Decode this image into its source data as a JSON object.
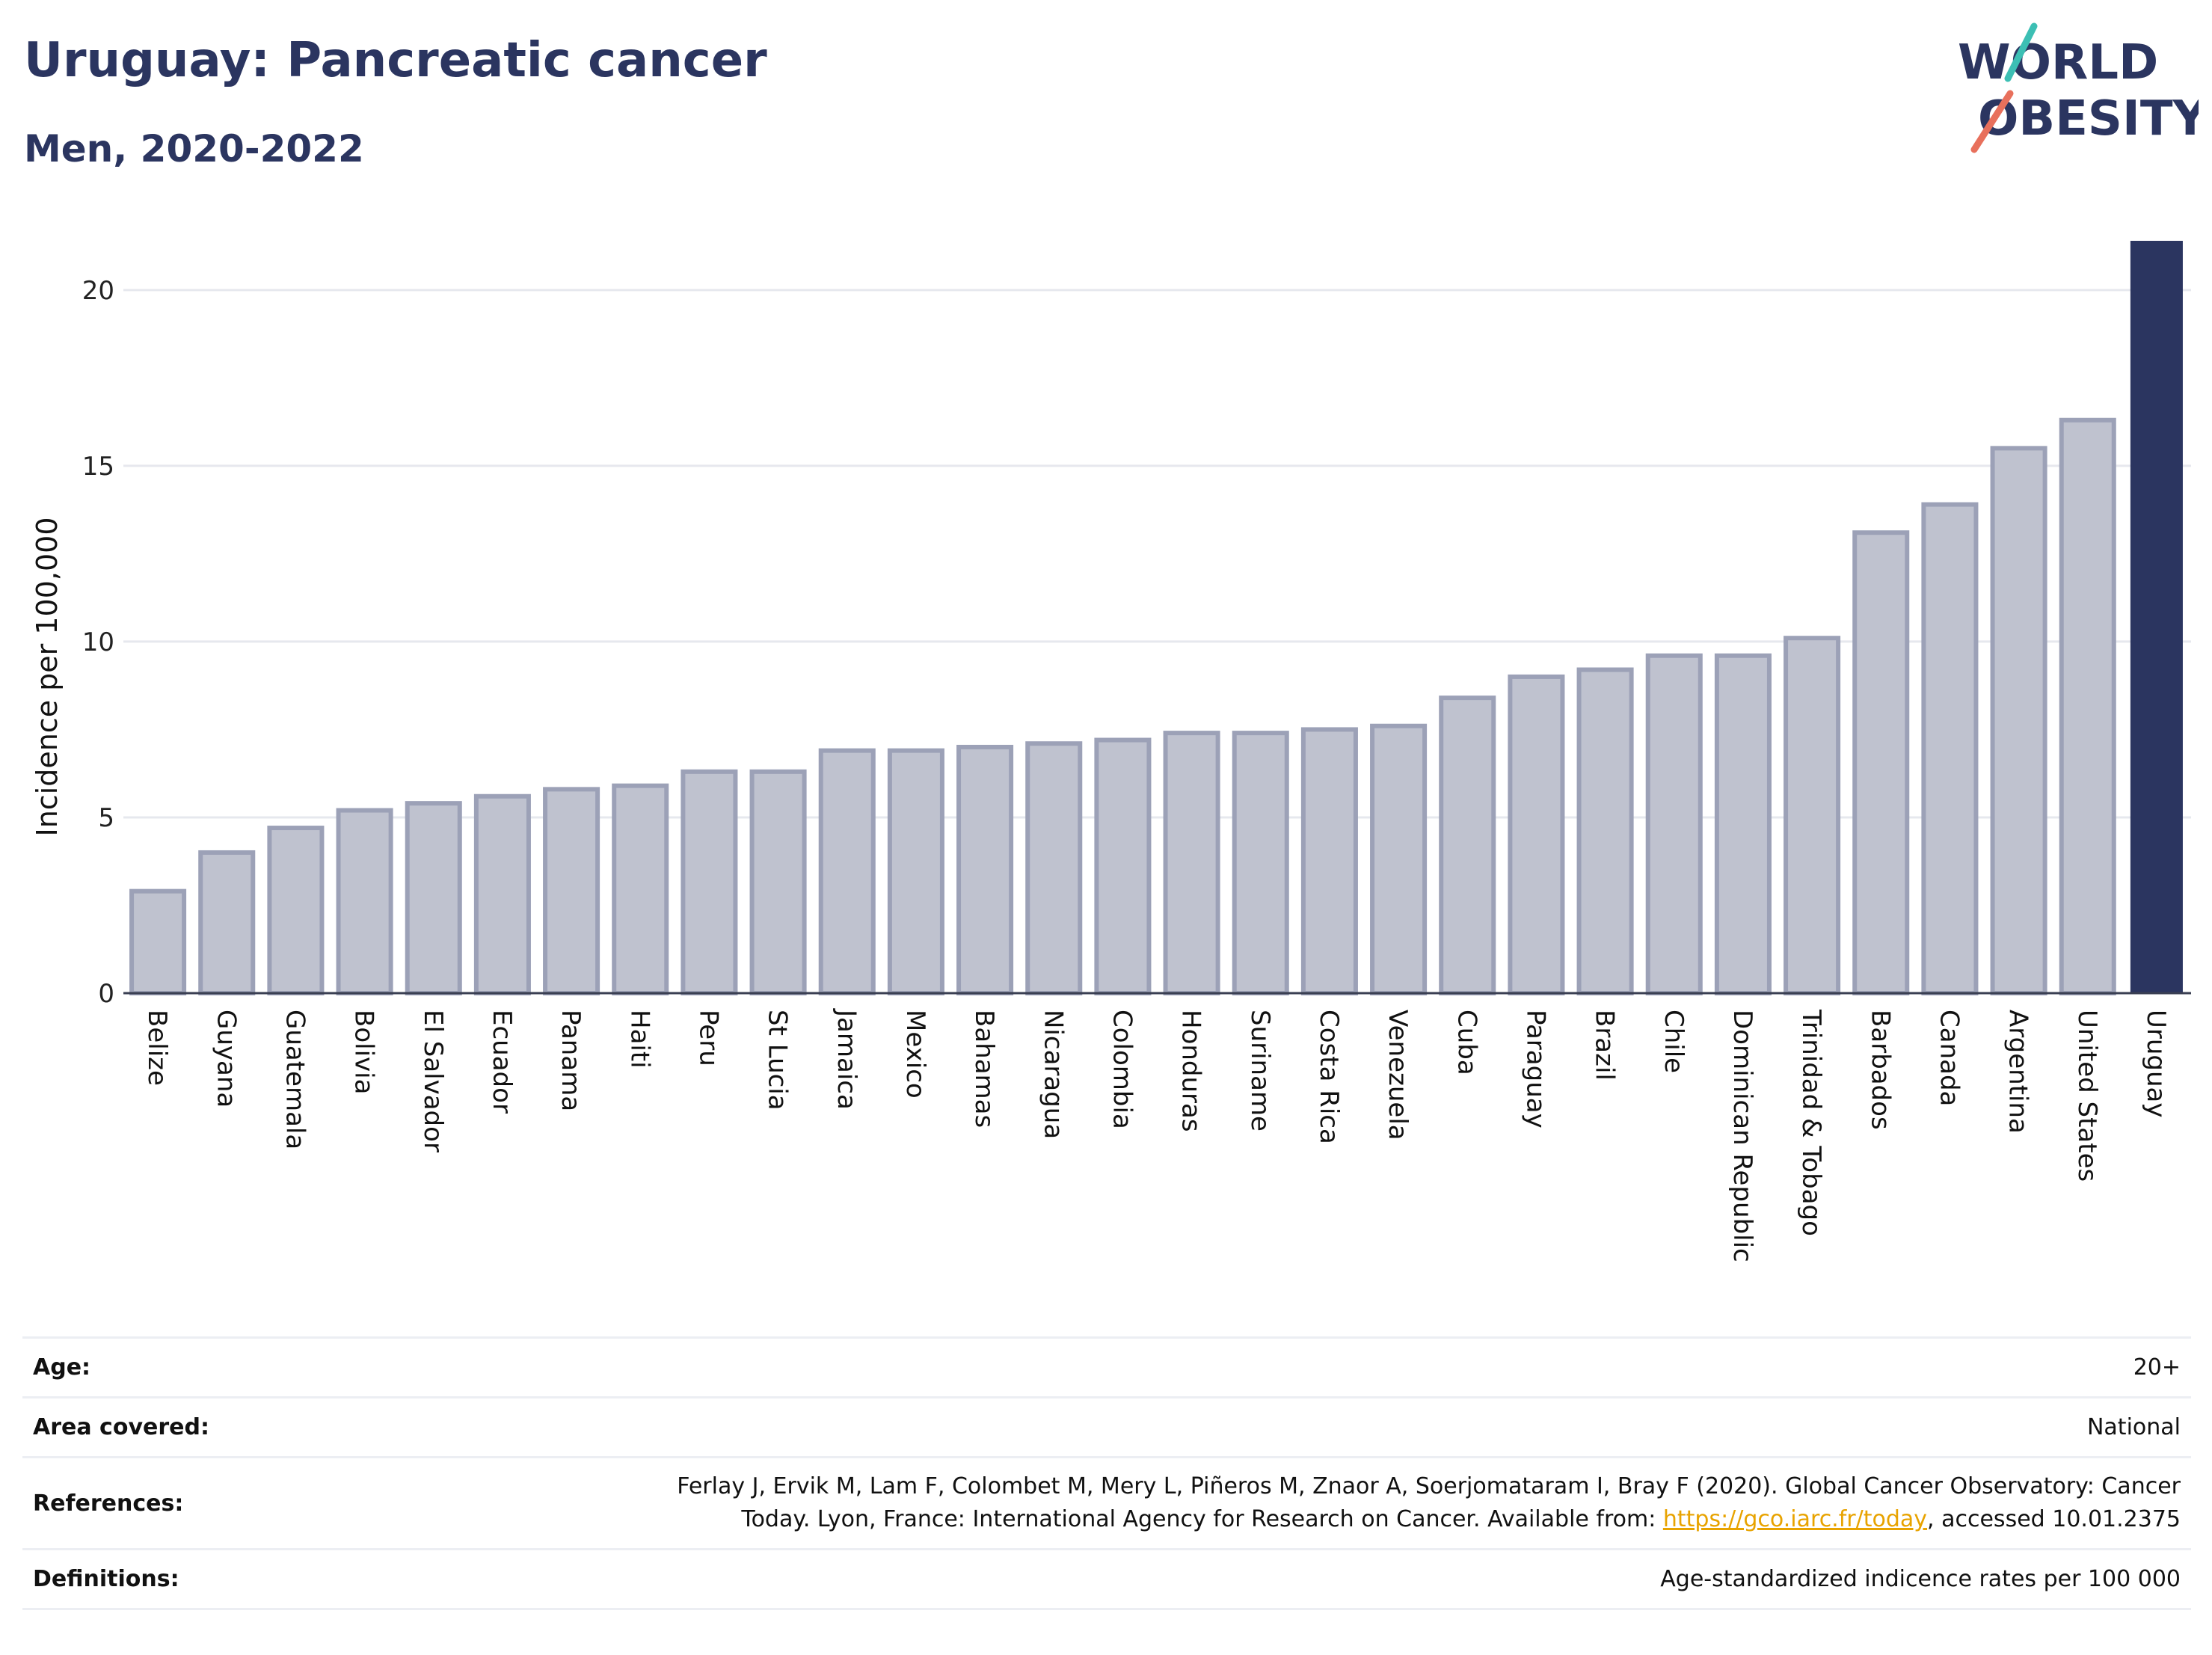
{
  "header": {
    "title": "Uruguay: Pancreatic cancer",
    "subtitle": "Men, 2020-2022"
  },
  "logo": {
    "line1": "WORLD",
    "line2": "OBESITY",
    "icon": "world-obesity-logo"
  },
  "colors": {
    "highlight_bar": "#2b3560",
    "other_bar_fill": "#bfc2cf",
    "other_bar_stroke": "#9ca1b7",
    "title": "#2b3560",
    "link": "#e8a300",
    "logo_teal": "#3cbfb4",
    "logo_coral": "#e8705c"
  },
  "chart_data": {
    "type": "bar",
    "ylabel": "Incidence per 100,000",
    "xlabel": "",
    "ylim": [
      0,
      21.4
    ],
    "yticks": [
      0,
      5,
      10,
      15,
      20
    ],
    "grid": true,
    "highlight": "Uruguay",
    "categories": [
      "Belize",
      "Guyana",
      "Guatemala",
      "Bolivia",
      "El Salvador",
      "Ecuador",
      "Panama",
      "Haiti",
      "Peru",
      "St Lucia",
      "Jamaica",
      "Mexico",
      "Bahamas",
      "Nicaragua",
      "Colombia",
      "Honduras",
      "Suriname",
      "Costa Rica",
      "Venezuela",
      "Cuba",
      "Paraguay",
      "Brazil",
      "Chile",
      "Dominican Republic",
      "Trinidad & Tobago",
      "Barbados",
      "Canada",
      "Argentina",
      "United States",
      "Uruguay"
    ],
    "values": [
      2.9,
      4.0,
      4.7,
      5.2,
      5.4,
      5.6,
      5.8,
      5.9,
      6.3,
      6.3,
      6.9,
      6.9,
      7.0,
      7.1,
      7.2,
      7.4,
      7.4,
      7.5,
      7.6,
      8.4,
      9.0,
      9.2,
      9.6,
      9.6,
      10.1,
      13.1,
      13.9,
      15.5,
      16.3,
      21.4
    ]
  },
  "meta": {
    "age_label": "Age:",
    "age_value": "20+",
    "area_label": "Area covered:",
    "area_value": "National",
    "references_label": "References:",
    "references_line1": "Ferlay J, Ervik M, Lam F, Colombet M, Mery L, Piñeros M, Znaor A, Soerjomataram I, Bray F (2020). Global Cancer Observatory: Cancer",
    "references_line2_pre": "Today. Lyon, France: International Agency for Research on Cancer. Available from: ",
    "references_link": "https://gco.iarc.fr/today",
    "references_line2_post": ", accessed 10.01.2375",
    "definitions_label": "Definitions:",
    "definitions_value": "Age-standardized indicence rates per 100 000"
  }
}
